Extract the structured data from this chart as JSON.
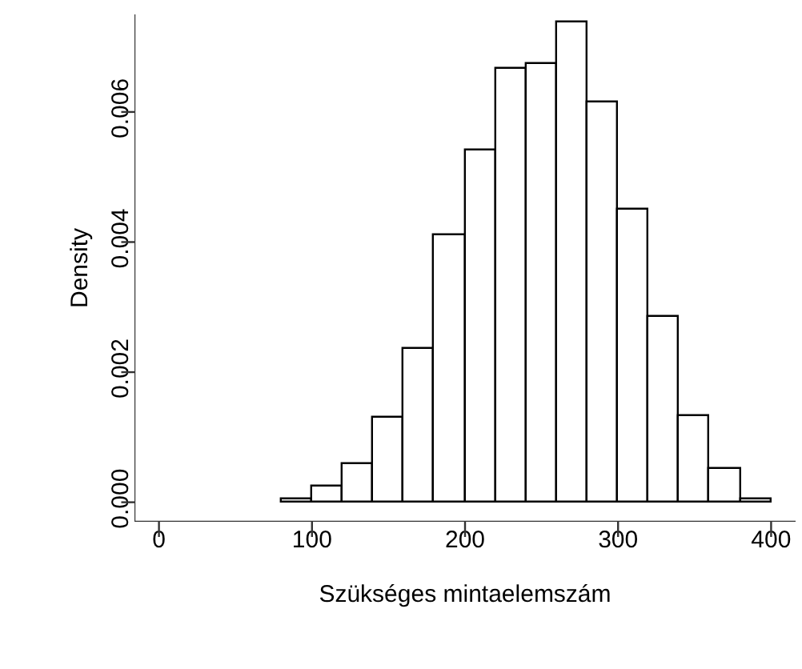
{
  "chart_data": {
    "type": "histogram",
    "xlabel": "Szükséges mintaelemszám",
    "ylabel": "Density",
    "bins": [
      80,
      100,
      120,
      140,
      160,
      180,
      200,
      220,
      240,
      260,
      280,
      300,
      320,
      340,
      360,
      380,
      400
    ],
    "values": [
      5e-05,
      0.00023,
      0.00058,
      0.00131,
      0.00236,
      0.0041,
      0.0054,
      0.00667,
      0.00673,
      0.00737,
      0.00615,
      0.00451,
      0.00286,
      0.00133,
      0.00052,
      5e-05
    ],
    "color": "#ffffff",
    "xlim": [
      -16,
      416
    ],
    "ylim": [
      -0.0003,
      0.0075
    ],
    "xticks": [
      0,
      100,
      200,
      300,
      400
    ],
    "yticks": [
      {
        "value": 0,
        "label": "0.000"
      },
      {
        "value": 0.002,
        "label": "0.002"
      },
      {
        "value": 0.004,
        "label": "0.004"
      },
      {
        "value": 0.006,
        "label": "0.006"
      }
    ]
  }
}
